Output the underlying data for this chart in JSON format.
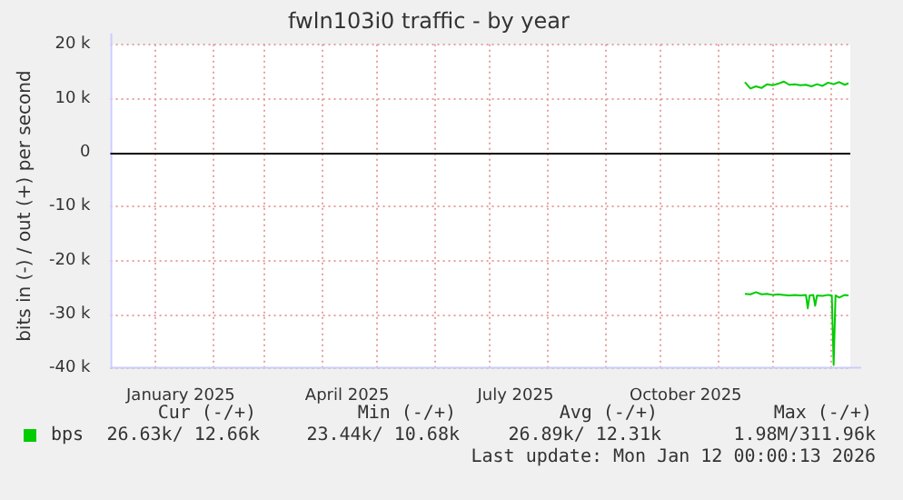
{
  "chart_data": {
    "type": "line",
    "title": "fwln103i0 traffic - by year",
    "ylabel": "bits in (-) / out (+) per second",
    "xlim": [
      "2024-12-08",
      "2026-01-12"
    ],
    "ylim": [
      -40000,
      20000
    ],
    "xticks": [
      {
        "value": "2025-01-15",
        "label": "January 2025"
      },
      {
        "value": "2025-04-15",
        "label": "April 2025"
      },
      {
        "value": "2025-07-15",
        "label": "July 2025"
      },
      {
        "value": "2025-10-15",
        "label": "October 2025"
      },
      {
        "value": "2025-01-01",
        "label": null
      },
      {
        "value": "2025-02-01",
        "label": null
      },
      {
        "value": "2025-03-01",
        "label": null
      },
      {
        "value": "2025-04-01",
        "label": null
      },
      {
        "value": "2025-05-01",
        "label": null
      },
      {
        "value": "2025-06-01",
        "label": null
      },
      {
        "value": "2025-07-01",
        "label": null
      },
      {
        "value": "2025-08-01",
        "label": null
      },
      {
        "value": "2025-09-01",
        "label": null
      },
      {
        "value": "2025-10-01",
        "label": null
      },
      {
        "value": "2025-11-01",
        "label": null
      },
      {
        "value": "2025-12-01",
        "label": null
      },
      {
        "value": "2026-01-01",
        "label": null
      }
    ],
    "yticks": [
      {
        "value": -40000,
        "label": "-40 k"
      },
      {
        "value": -30000,
        "label": "-30 k"
      },
      {
        "value": -20000,
        "label": "-20 k"
      },
      {
        "value": -10000,
        "label": "-10 k"
      },
      {
        "value": 0,
        "label": "0"
      },
      {
        "value": 10000,
        "label": "10 k"
      },
      {
        "value": 20000,
        "label": "20 k"
      }
    ],
    "grid": true,
    "legend": "bottom left",
    "marker": "none",
    "ref_lines": [
      {
        "axis": "y",
        "value": 0,
        "color": "#000000"
      }
    ],
    "series": [
      {
        "name": "bps",
        "color": "#00cc00",
        "x": [
          "2025-11-16",
          "2025-11-19",
          "2025-11-22",
          "2025-11-25",
          "2025-11-28",
          "2025-12-01",
          "2025-12-04",
          "2025-12-07",
          "2025-12-10",
          "2025-12-13",
          "2025-12-16",
          "2025-12-19",
          "2025-12-22",
          "2025-12-25",
          "2025-12-28",
          "2025-12-31",
          "2026-01-03",
          "2026-01-06",
          "2026-01-09",
          "2026-01-11"
        ],
        "values": [
          13000,
          11800,
          12200,
          11900,
          12600,
          12400,
          12700,
          13100,
          12500,
          12600,
          12400,
          12500,
          12200,
          12600,
          12300,
          12900,
          12600,
          13000,
          12500,
          12800
        ]
      },
      {
        "color": "#00cc00",
        "x": [
          "2025-11-16",
          "2025-11-19",
          "2025-11-22",
          "2025-11-25",
          "2025-11-28",
          "2025-12-01",
          "2025-12-04",
          "2025-12-07",
          "2025-12-10",
          "2025-12-13",
          "2025-12-16",
          "2025-12-19",
          "2025-12-20",
          "2025-12-21",
          "2025-12-23",
          "2025-12-24",
          "2025-12-25",
          "2025-12-28",
          "2025-12-31",
          "2026-01-02",
          "2026-01-03",
          "2026-01-04",
          "2026-01-06",
          "2026-01-09",
          "2026-01-11"
        ],
        "values": [
          -26300,
          -26400,
          -26000,
          -26400,
          -26300,
          -26500,
          -26400,
          -26500,
          -26600,
          -26500,
          -26600,
          -26500,
          -29000,
          -26600,
          -26500,
          -28500,
          -26600,
          -26700,
          -26500,
          -26600,
          -39500,
          -26600,
          -27000,
          -26500,
          -26600
        ]
      }
    ],
    "annotations": [
      "Cur (-/+)",
      "Min (-/+)",
      "Avg (-/+)",
      "Max (-/+)",
      "26.63k/ 12.66k",
      "23.44k/ 10.68k",
      "26.89k/ 12.31k",
      "1.98M/311.96k",
      "Last update: Mon Jan 12 00:00:13 2026"
    ]
  }
}
